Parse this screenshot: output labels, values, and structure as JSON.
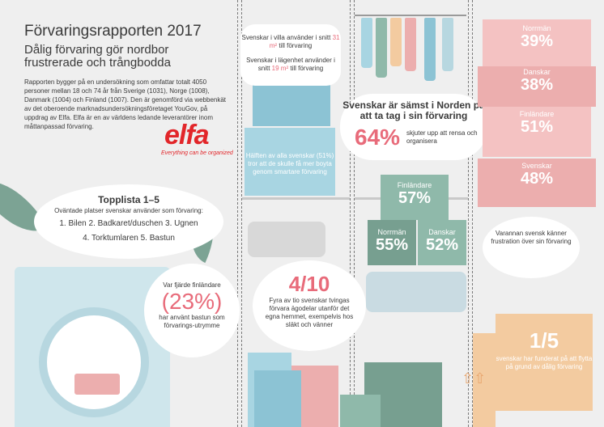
{
  "header": {
    "title": "Förvaringsrapporten 2017",
    "subtitle": "Dålig förvaring gör nordbor frustrerade och trångbodda",
    "intro": "Rapporten bygger på en undersökning som omfattar totalt 4050 personer mellan 18 och 74 år från Sverige (1031), Norge (1008), Danmark (1004) och Finland (1007). Den är genomförd via webbenkät av det oberoende marknadsundersökningsföretaget YouGov, på uppdrag av Elfa. Elfa är en av världens ledande leverantörer inom måttanpassad förvaring."
  },
  "logo": {
    "name": "elfa",
    "tagline": "Everything can be organized"
  },
  "toplist": {
    "title": "Topplista 1–5",
    "subtitle": "Oväntade platser svenskar använder som förvaring:",
    "line1": "1. Bilen 2. Badkaret/duschen 3. Ugnen",
    "line2": "4. Torktumlaren 5. Bastun"
  },
  "villa": {
    "line1": "Svenskar i villa använder i snitt",
    "value1": "31 m²",
    "suffix1": "till förvaring",
    "line2": "Svenskar i lägenhet använder i snitt",
    "value2": "19 m²",
    "suffix2": "till förvaring"
  },
  "worst": {
    "title": "Svenskar är sämst i Norden på att ta tag i sin förvaring",
    "percent": "64%",
    "text": "skjuter upp att rensa och organisera"
  },
  "half": {
    "text": "Hälften av alla svenskar (51%) tror att de skulle få mer boyta genom smartare förvaring"
  },
  "procrastinate": [
    {
      "label": "Finländare",
      "value": "57%"
    },
    {
      "label": "Norrmän",
      "value": "55%"
    },
    {
      "label": "Danskar",
      "value": "52%"
    }
  ],
  "frustration": [
    {
      "label": "Norrmän",
      "value": "39%"
    },
    {
      "label": "Danskar",
      "value": "38%"
    },
    {
      "label": "Finländare",
      "value": "51%"
    },
    {
      "label": "Svenskar",
      "value": "48%"
    }
  ],
  "varannan": {
    "text": "Varannan svensk känner frustration över sin förvaring"
  },
  "sauna": {
    "line1": "Var fjärde finländare",
    "percent": "(23%)",
    "line2": "har använt bastun som förvarings-utrymme"
  },
  "outside": {
    "value": "4/10",
    "text": "Fyra av tio svenskar tvingas förvara ägodelar utanför det egna hemmet, exempelvis hos släkt och vänner"
  },
  "move": {
    "value": "1/5",
    "text": "svenskar har funderat på att flytta på grund av dålig förvaring"
  },
  "colors": {
    "pink_accent": "#e86b7a",
    "blue_box": "#a8d5e2",
    "green_box": "#8fb9aa",
    "pink_box": "#f4c2c2",
    "logo_red": "#e2262a"
  }
}
